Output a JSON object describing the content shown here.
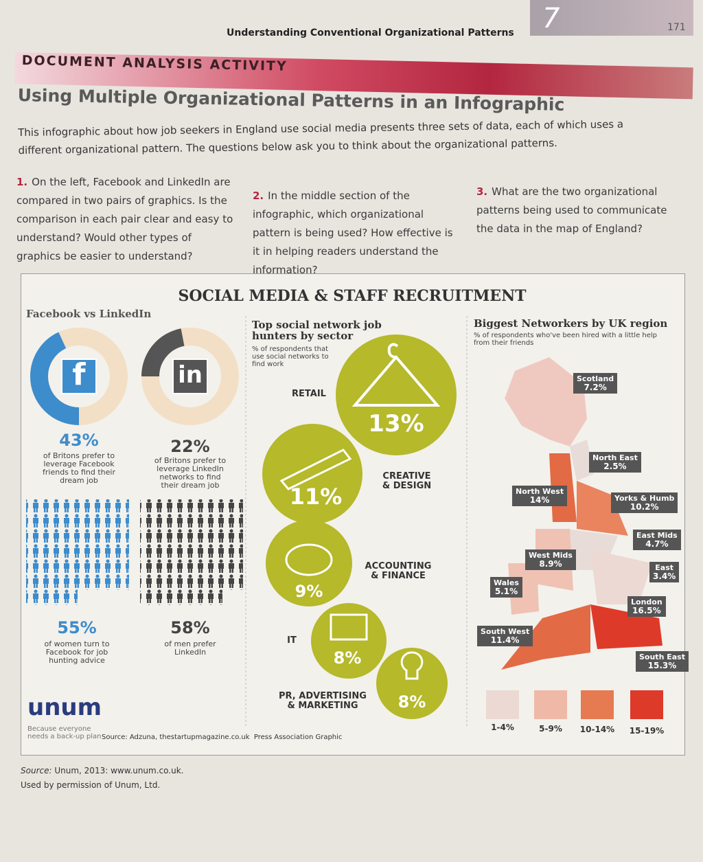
{
  "header": {
    "running_title": "Understanding Conventional Organizational Patterns",
    "chapter": "7",
    "page_number": "171"
  },
  "activity": {
    "label": "DOCUMENT ANALYSIS ACTIVITY",
    "title": "Using Multiple Organizational Patterns in an Infographic",
    "intro": "This infographic about how job seekers in England use social media presents three sets of data, each of which uses a different organizational pattern. The questions below ask you to think about the organizational patterns.",
    "questions": [
      {
        "number": "1.",
        "text": "On the left, Facebook and LinkedIn are compared in two pairs of graphics. Is the comparison in each pair clear and easy to understand? Would other types of graphics be easier to understand?"
      },
      {
        "number": "2.",
        "text": "In the middle section of the infographic, which organizational pattern is being used? How effective is it in helping readers understand the information?"
      },
      {
        "number": "3.",
        "text": "What are the two organizational patterns being used to communicate the data in the map of England?"
      }
    ]
  },
  "infographic": {
    "title": "SOCIAL MEDIA & STAFF RECRUITMENT",
    "comparison": {
      "heading": "Facebook vs LinkedIn",
      "facebook_icon": "f",
      "linkedin_icon": "in",
      "stats": [
        {
          "value": "43%",
          "text": "of Britons prefer to leverage Facebook friends to find their dream job"
        },
        {
          "value": "22%",
          "text": "of Britons prefer to leverage LinkedIn networks to find their dream job"
        },
        {
          "value": "55%",
          "text": "of women turn to Facebook for job hunting advice"
        },
        {
          "value": "58%",
          "text": "of men prefer LinkedIn"
        }
      ]
    },
    "sectors": {
      "heading": "Top social network job hunters by sector",
      "note": "% of respondents that use social networks to find work",
      "items": [
        {
          "label": "RETAIL",
          "value": "13%"
        },
        {
          "label": "CREATIVE & DESIGN",
          "value": "11%"
        },
        {
          "label": "ACCOUNTING & FINANCE",
          "value": "9%"
        },
        {
          "label": "IT",
          "value": "8%"
        },
        {
          "label": "PR, ADVERTISING & MARKETING",
          "value": "8%"
        }
      ]
    },
    "regions": {
      "heading": "Biggest Networkers by UK region",
      "note": "% of respondents who've been hired with a little help from their friends",
      "items": [
        {
          "name": "Scotland",
          "value": "7.2%"
        },
        {
          "name": "North East",
          "value": "2.5%"
        },
        {
          "name": "North West",
          "value": "14%"
        },
        {
          "name": "Yorks & Humb",
          "value": "10.2%"
        },
        {
          "name": "East Mids",
          "value": "4.7%"
        },
        {
          "name": "East",
          "value": "3.4%"
        },
        {
          "name": "West Mids",
          "value": "8.9%"
        },
        {
          "name": "Wales",
          "value": "5.1%"
        },
        {
          "name": "London",
          "value": "16.5%"
        },
        {
          "name": "South West",
          "value": "11.4%"
        },
        {
          "name": "South East",
          "value": "15.3%"
        }
      ],
      "legend": [
        "1-4%",
        "5-9%",
        "10-14%",
        "15-19%"
      ]
    },
    "logo": {
      "name": "unum",
      "tagline": "Because everyone needs a back-up plan"
    },
    "source": "Source: Adzuna, thestartupmagazine.co.uk  Press Association Graphic"
  },
  "footer": {
    "source_label": "Source:",
    "source": "Unum, 2013: www.unum.co.uk.",
    "permission": "Used by permission of Unum, Ltd."
  }
}
